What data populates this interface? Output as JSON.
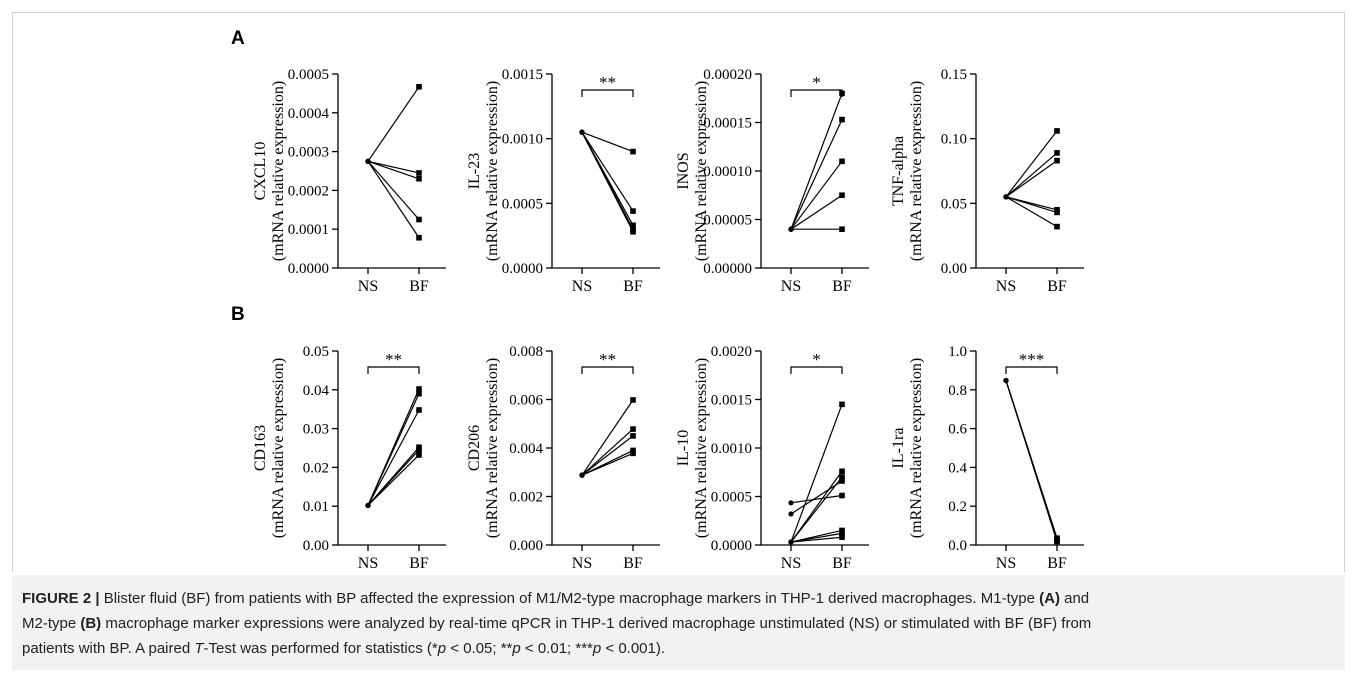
{
  "panel_labels": [
    "A",
    "B"
  ],
  "caption": {
    "lead": "FIGURE 2 |",
    "line1_a": " Blister fluid (BF) from patients with BP affected the expression of M1/M2-type macrophage markers in THP-1 derived macrophages. M1-type ",
    "label_a": "(A)",
    "line1_b": " and",
    "line2_a": "M2-type ",
    "label_b": "(B)",
    "line2_b": " macrophage marker expressions were analyzed by real-time qPCR in THP-1 derived macrophage unstimulated (NS) or stimulated with BF (BF) from",
    "line3_a": "patients with BP. A paired ",
    "line3_t": "T",
    "line3_b": "-Test was performed for statistics (*",
    "p1": "p",
    "s1": " < 0.05; **",
    "p2": "p",
    "s2": " < 0.01; ***",
    "p3": "p",
    "s3": " < 0.001)."
  },
  "chart_data": [
    {
      "type": "line",
      "panel": "A",
      "ylabel": "CXCL10",
      "ylabel2": "(mRNA relative expression)",
      "categories": [
        "NS",
        "BF"
      ],
      "ylim": [
        0,
        0.0005
      ],
      "yticks": [
        "0.0000",
        "0.0001",
        "0.0002",
        "0.0003",
        "0.0004",
        "0.0005"
      ],
      "sig": "",
      "series": [
        [
          0.000275,
          0.000467
        ],
        [
          0.000275,
          0.000245
        ],
        [
          0.000275,
          0.00023
        ],
        [
          0.000275,
          0.000125
        ],
        [
          0.000275,
          7.8e-05
        ]
      ]
    },
    {
      "type": "line",
      "panel": "A",
      "ylabel": "IL-23",
      "ylabel2": "(mRNA relative expression)",
      "categories": [
        "NS",
        "BF"
      ],
      "ylim": [
        0,
        0.0015
      ],
      "yticks": [
        "0.0000",
        "0.0005",
        "0.0010",
        "0.0015"
      ],
      "sig": "**",
      "series": [
        [
          0.00105,
          0.0009
        ],
        [
          0.00105,
          0.00044
        ],
        [
          0.00105,
          0.00033
        ],
        [
          0.00105,
          0.0003
        ],
        [
          0.00105,
          0.00028
        ]
      ]
    },
    {
      "type": "line",
      "panel": "A",
      "ylabel": "INOS",
      "ylabel2": "(mRNA relative expression)",
      "categories": [
        "NS",
        "BF"
      ],
      "ylim": [
        0,
        0.0002
      ],
      "yticks": [
        "0.00000",
        "0.00005",
        "0.00010",
        "0.00015",
        "0.00020"
      ],
      "sig": "*",
      "series": [
        [
          4e-05,
          0.00018
        ],
        [
          4e-05,
          0.000153
        ],
        [
          4e-05,
          0.00011
        ],
        [
          4e-05,
          7.5e-05
        ],
        [
          4e-05,
          4e-05
        ]
      ]
    },
    {
      "type": "line",
      "panel": "A",
      "ylabel": "TNF-alpha",
      "ylabel2": "(mRNA relative expression)",
      "categories": [
        "NS",
        "BF"
      ],
      "ylim": [
        0,
        0.15
      ],
      "yticks": [
        "0.00",
        "0.05",
        "0.10",
        "0.15"
      ],
      "sig": "",
      "series": [
        [
          0.055,
          0.106
        ],
        [
          0.055,
          0.089
        ],
        [
          0.055,
          0.083
        ],
        [
          0.055,
          0.045
        ],
        [
          0.055,
          0.043
        ],
        [
          0.055,
          0.032
        ]
      ]
    },
    {
      "type": "line",
      "panel": "B",
      "ylabel": "CD163",
      "ylabel2": "(mRNA relative expression)",
      "categories": [
        "NS",
        "BF"
      ],
      "ylim": [
        0,
        0.05
      ],
      "yticks": [
        "0.00",
        "0.01",
        "0.02",
        "0.03",
        "0.04",
        "0.05"
      ],
      "sig": "**",
      "series": [
        [
          0.0102,
          0.0402
        ],
        [
          0.0102,
          0.039
        ],
        [
          0.0102,
          0.0348
        ],
        [
          0.0102,
          0.0252
        ],
        [
          0.0102,
          0.0245
        ],
        [
          0.0102,
          0.0232
        ]
      ]
    },
    {
      "type": "line",
      "panel": "B",
      "ylabel": "CD206",
      "ylabel2": "(mRNA relative expression)",
      "categories": [
        "NS",
        "BF"
      ],
      "ylim": [
        0,
        0.008
      ],
      "yticks": [
        "0.000",
        "0.002",
        "0.004",
        "0.006",
        "0.008"
      ],
      "sig": "**",
      "series": [
        [
          0.00288,
          0.00598
        ],
        [
          0.00288,
          0.00478
        ],
        [
          0.00288,
          0.0045
        ],
        [
          0.00288,
          0.0039
        ],
        [
          0.00288,
          0.00378
        ]
      ]
    },
    {
      "type": "line",
      "panel": "B",
      "ylabel": "IL-10",
      "ylabel2": "(mRNA relative expression)",
      "categories": [
        "NS",
        "BF"
      ],
      "ylim": [
        0,
        0.002
      ],
      "yticks": [
        "0.0000",
        "0.0005",
        "0.0010",
        "0.0015",
        "0.0020"
      ],
      "sig": "*",
      "series": [
        [
          0.000435,
          0.00051
        ],
        [
          0.00032,
          0.00066
        ],
        [
          3e-05,
          0.00145
        ],
        [
          3e-05,
          0.00076
        ],
        [
          3e-05,
          0.0007
        ],
        [
          3e-05,
          0.00015
        ],
        [
          3e-05,
          0.00012
        ],
        [
          3e-05,
          8e-05
        ]
      ]
    },
    {
      "type": "line",
      "panel": "B",
      "ylabel": "IL-1ra",
      "ylabel2": "(mRNA relative expression)",
      "categories": [
        "NS",
        "BF"
      ],
      "ylim": [
        0,
        1.0
      ],
      "yticks": [
        "0.0",
        "0.2",
        "0.4",
        "0.6",
        "0.8",
        "1.0"
      ],
      "sig": "***",
      "series": [
        [
          0.848,
          0.035
        ],
        [
          0.848,
          0.028
        ],
        [
          0.848,
          0.022
        ],
        [
          0.848,
          0.018
        ]
      ]
    }
  ]
}
